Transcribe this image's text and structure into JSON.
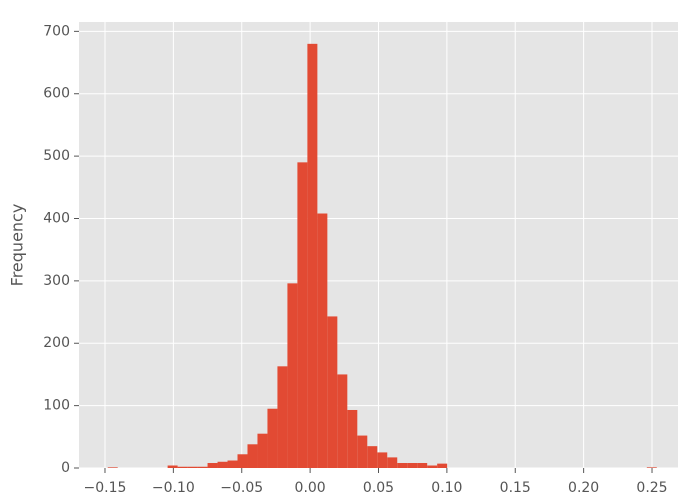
{
  "chart_data": {
    "type": "histogram",
    "y_label": "Frequency",
    "color": "#E24A33",
    "grid": true,
    "bins": [
      -0.148,
      -0.1407,
      -0.1334,
      -0.1261,
      -0.1188,
      -0.1115,
      -0.1042,
      -0.0969,
      -0.0896,
      -0.0823,
      -0.075,
      -0.0677,
      -0.0604,
      -0.0531,
      -0.0458,
      -0.0385,
      -0.0312,
      -0.0239,
      -0.0166,
      -0.0093,
      -0.002,
      0.0053,
      0.0126,
      0.0199,
      0.0272,
      0.0345,
      0.0418,
      0.0491,
      0.0564,
      0.0637,
      0.071,
      0.0783,
      0.0856,
      0.0929,
      0.1002,
      0.1075,
      0.1148,
      0.1221,
      0.1294,
      0.1367,
      0.144,
      0.1513,
      0.1586,
      0.1659,
      0.1732,
      0.1805,
      0.1878,
      0.1951,
      0.2024,
      0.2097,
      0.217,
      0.2243,
      0.2316,
      0.2389,
      0.2462,
      0.2535
    ],
    "values": [
      1,
      0,
      0,
      0,
      0,
      0,
      4,
      2,
      2,
      2,
      8,
      10,
      12,
      22,
      38,
      55,
      95,
      163,
      296,
      490,
      680,
      408,
      243,
      150,
      93,
      52,
      35,
      25,
      17,
      8,
      8,
      8,
      4,
      7,
      0,
      0,
      0,
      0,
      0,
      0,
      0,
      0,
      0,
      0,
      0,
      0,
      0,
      0,
      0,
      0,
      0,
      0,
      0,
      0,
      1
    ],
    "xlim": [
      -0.169,
      0.269
    ],
    "ylim": [
      0,
      715
    ],
    "xticks": [
      {
        "value": -0.15,
        "label": "−0.15"
      },
      {
        "value": -0.1,
        "label": "−0.10"
      },
      {
        "value": -0.05,
        "label": "−0.05"
      },
      {
        "value": 0,
        "label": "0.00"
      },
      {
        "value": 0.05,
        "label": "0.05"
      },
      {
        "value": 0.1,
        "label": "0.10"
      },
      {
        "value": 0.15,
        "label": "0.15"
      },
      {
        "value": 0.2,
        "label": "0.20"
      },
      {
        "value": 0.25,
        "label": "0.25"
      }
    ],
    "yticks": [
      0,
      100,
      200,
      300,
      400,
      500,
      600,
      700
    ]
  }
}
